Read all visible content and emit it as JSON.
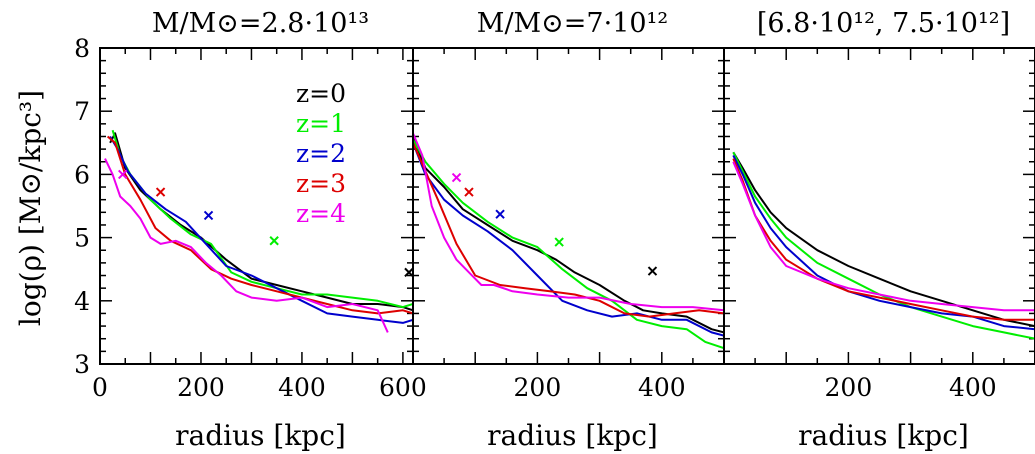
{
  "figure": {
    "ylabel": "log(ρ) [M⊙/kpc³]",
    "xlabel": "radius [kpc]"
  },
  "colors": {
    "z0": "#000000",
    "z1": "#00ee00",
    "z2": "#0000cc",
    "z3": "#dd0000",
    "z4": "#ee00ee"
  },
  "chart_data": [
    {
      "type": "line",
      "title": "M/M⊙=2.8·10¹³",
      "xlabel": "radius [kpc]",
      "ylabel": "log(ρ) [M⊙/kpc³]",
      "xlim": [
        0,
        620
      ],
      "ylim": [
        3,
        8
      ],
      "xticks": [
        0,
        200,
        400,
        600
      ],
      "yticks": [
        3,
        4,
        5,
        6,
        7,
        8
      ],
      "legend": {
        "placement": "top-center",
        "entries": [
          "z=0",
          "z=1",
          "z=2",
          "z=3",
          "z=4"
        ]
      },
      "series": [
        {
          "name": "z=0",
          "color": "#000000",
          "points": [
            [
              20,
              6.5
            ],
            [
              30,
              6.65
            ],
            [
              50,
              6.1
            ],
            [
              80,
              5.75
            ],
            [
              120,
              5.45
            ],
            [
              160,
              5.2
            ],
            [
              200,
              5.0
            ],
            [
              250,
              4.65
            ],
            [
              300,
              4.35
            ],
            [
              350,
              4.25
            ],
            [
              400,
              4.15
            ],
            [
              450,
              4.05
            ],
            [
              500,
              3.95
            ],
            [
              550,
              3.95
            ],
            [
              600,
              3.9
            ],
            [
              620,
              3.85
            ]
          ],
          "marker": [
            612,
            4.45
          ]
        },
        {
          "name": "z=1",
          "color": "#00ee00",
          "points": [
            [
              25,
              6.7
            ],
            [
              40,
              6.3
            ],
            [
              60,
              6.0
            ],
            [
              100,
              5.6
            ],
            [
              140,
              5.3
            ],
            [
              180,
              5.05
            ],
            [
              220,
              4.9
            ],
            [
              260,
              4.45
            ],
            [
              300,
              4.3
            ],
            [
              350,
              4.2
            ],
            [
              400,
              4.1
            ],
            [
              450,
              4.1
            ],
            [
              500,
              4.05
            ],
            [
              550,
              4.0
            ],
            [
              600,
              3.9
            ],
            [
              620,
              3.95
            ]
          ],
          "marker": [
            345,
            4.95
          ]
        },
        {
          "name": "z=2",
          "color": "#0000cc",
          "points": [
            [
              20,
              6.6
            ],
            [
              35,
              6.4
            ],
            [
              55,
              6.05
            ],
            [
              90,
              5.7
            ],
            [
              130,
              5.45
            ],
            [
              170,
              5.25
            ],
            [
              210,
              4.9
            ],
            [
              250,
              4.55
            ],
            [
              300,
              4.4
            ],
            [
              350,
              4.2
            ],
            [
              400,
              4.0
            ],
            [
              450,
              3.8
            ],
            [
              500,
              3.75
            ],
            [
              550,
              3.7
            ],
            [
              600,
              3.65
            ],
            [
              620,
              3.7
            ]
          ],
          "marker": [
            215,
            5.35
          ]
        },
        {
          "name": "z=3",
          "color": "#dd0000",
          "points": [
            [
              15,
              6.6
            ],
            [
              30,
              6.5
            ],
            [
              50,
              6.0
            ],
            [
              80,
              5.6
            ],
            [
              110,
              5.15
            ],
            [
              140,
              4.95
            ],
            [
              180,
              4.8
            ],
            [
              220,
              4.5
            ],
            [
              260,
              4.35
            ],
            [
              300,
              4.25
            ],
            [
              350,
              4.15
            ],
            [
              400,
              4.05
            ],
            [
              450,
              3.95
            ],
            [
              500,
              3.85
            ],
            [
              550,
              3.8
            ],
            [
              600,
              3.85
            ],
            [
              620,
              3.8
            ]
          ],
          "marker": [
            120,
            5.72
          ]
        },
        {
          "name": "z=4",
          "color": "#ee00ee",
          "points": [
            [
              10,
              6.25
            ],
            [
              25,
              6.0
            ],
            [
              40,
              5.65
            ],
            [
              60,
              5.5
            ],
            [
              80,
              5.3
            ],
            [
              100,
              5.0
            ],
            [
              120,
              4.9
            ],
            [
              150,
              4.95
            ],
            [
              180,
              4.85
            ],
            [
              210,
              4.6
            ],
            [
              240,
              4.4
            ],
            [
              270,
              4.15
            ],
            [
              300,
              4.05
            ],
            [
              350,
              4.0
            ],
            [
              400,
              4.05
            ],
            [
              450,
              3.9
            ],
            [
              500,
              3.95
            ],
            [
              550,
              3.85
            ],
            [
              570,
              3.5
            ]
          ],
          "marker": [
            45,
            6.0
          ]
        }
      ]
    },
    {
      "type": "line",
      "title": "M/M⊙=7·10¹²",
      "xlabel": "radius [kpc]",
      "xlim": [
        0,
        500
      ],
      "ylim": [
        3,
        8
      ],
      "xticks": [
        200,
        400
      ],
      "series": [
        {
          "name": "z=0",
          "color": "#000000",
          "points": [
            [
              0,
              6.6
            ],
            [
              20,
              6.1
            ],
            [
              50,
              5.8
            ],
            [
              80,
              5.45
            ],
            [
              120,
              5.2
            ],
            [
              160,
              4.95
            ],
            [
              200,
              4.8
            ],
            [
              230,
              4.65
            ],
            [
              260,
              4.45
            ],
            [
              300,
              4.25
            ],
            [
              340,
              4.0
            ],
            [
              370,
              3.85
            ],
            [
              400,
              3.8
            ],
            [
              440,
              3.75
            ],
            [
              480,
              3.55
            ],
            [
              500,
              3.5
            ]
          ],
          "marker": [
            385,
            4.47
          ]
        },
        {
          "name": "z=1",
          "color": "#00ee00",
          "points": [
            [
              0,
              6.55
            ],
            [
              20,
              6.2
            ],
            [
              50,
              5.85
            ],
            [
              80,
              5.55
            ],
            [
              120,
              5.25
            ],
            [
              160,
              5.0
            ],
            [
              200,
              4.85
            ],
            [
              240,
              4.5
            ],
            [
              280,
              4.2
            ],
            [
              320,
              4.0
            ],
            [
              360,
              3.7
            ],
            [
              400,
              3.6
            ],
            [
              440,
              3.55
            ],
            [
              470,
              3.35
            ],
            [
              500,
              3.25
            ]
          ],
          "marker": [
            235,
            4.93
          ]
        },
        {
          "name": "z=2",
          "color": "#0000cc",
          "points": [
            [
              0,
              6.5
            ],
            [
              20,
              6.0
            ],
            [
              50,
              5.6
            ],
            [
              80,
              5.35
            ],
            [
              120,
              5.1
            ],
            [
              160,
              4.8
            ],
            [
              200,
              4.4
            ],
            [
              240,
              4.0
            ],
            [
              280,
              3.85
            ],
            [
              320,
              3.75
            ],
            [
              360,
              3.8
            ],
            [
              400,
              3.7
            ],
            [
              440,
              3.7
            ],
            [
              480,
              3.5
            ],
            [
              500,
              3.45
            ]
          ],
          "marker": [
            140,
            5.37
          ]
        },
        {
          "name": "z=3",
          "color": "#dd0000",
          "points": [
            [
              0,
              6.5
            ],
            [
              20,
              6.05
            ],
            [
              40,
              5.6
            ],
            [
              70,
              4.9
            ],
            [
              100,
              4.4
            ],
            [
              140,
              4.25
            ],
            [
              180,
              4.2
            ],
            [
              220,
              4.15
            ],
            [
              260,
              4.1
            ],
            [
              300,
              4.0
            ],
            [
              340,
              3.8
            ],
            [
              380,
              3.75
            ],
            [
              420,
              3.8
            ],
            [
              460,
              3.85
            ],
            [
              500,
              3.8
            ]
          ],
          "marker": [
            90,
            5.72
          ]
        },
        {
          "name": "z=4",
          "color": "#ee00ee",
          "points": [
            [
              0,
              6.65
            ],
            [
              15,
              6.3
            ],
            [
              30,
              5.5
            ],
            [
              50,
              5.0
            ],
            [
              70,
              4.65
            ],
            [
              90,
              4.45
            ],
            [
              110,
              4.25
            ],
            [
              130,
              4.25
            ],
            [
              160,
              4.15
            ],
            [
              200,
              4.1
            ],
            [
              250,
              4.05
            ],
            [
              300,
              4.05
            ],
            [
              350,
              3.95
            ],
            [
              400,
              3.9
            ],
            [
              450,
              3.9
            ],
            [
              500,
              3.85
            ]
          ],
          "marker": [
            70,
            5.95
          ]
        }
      ]
    },
    {
      "type": "line",
      "title": "[6.8·10¹², 7.5·10¹²]",
      "xlabel": "radius [kpc]",
      "xlim": [
        0,
        500
      ],
      "ylim": [
        3,
        8
      ],
      "xticks": [
        200,
        400
      ],
      "series": [
        {
          "name": "z=0",
          "color": "#000000",
          "points": [
            [
              15,
              6.35
            ],
            [
              30,
              6.1
            ],
            [
              50,
              5.75
            ],
            [
              75,
              5.4
            ],
            [
              100,
              5.15
            ],
            [
              150,
              4.8
            ],
            [
              200,
              4.55
            ],
            [
              250,
              4.35
            ],
            [
              300,
              4.15
            ],
            [
              350,
              4.0
            ],
            [
              400,
              3.85
            ],
            [
              450,
              3.7
            ],
            [
              500,
              3.6
            ]
          ]
        },
        {
          "name": "z=1",
          "color": "#00ee00",
          "points": [
            [
              15,
              6.35
            ],
            [
              30,
              6.05
            ],
            [
              50,
              5.65
            ],
            [
              75,
              5.3
            ],
            [
              100,
              5.0
            ],
            [
              150,
              4.6
            ],
            [
              200,
              4.35
            ],
            [
              250,
              4.1
            ],
            [
              300,
              3.9
            ],
            [
              350,
              3.75
            ],
            [
              400,
              3.6
            ],
            [
              450,
              3.5
            ],
            [
              500,
              3.4
            ]
          ]
        },
        {
          "name": "z=2",
          "color": "#0000cc",
          "points": [
            [
              15,
              6.3
            ],
            [
              30,
              6.0
            ],
            [
              50,
              5.55
            ],
            [
              75,
              5.15
            ],
            [
              100,
              4.85
            ],
            [
              150,
              4.4
            ],
            [
              200,
              4.15
            ],
            [
              250,
              4.0
            ],
            [
              300,
              3.9
            ],
            [
              350,
              3.8
            ],
            [
              400,
              3.75
            ],
            [
              450,
              3.6
            ],
            [
              500,
              3.55
            ]
          ]
        },
        {
          "name": "z=3",
          "color": "#dd0000",
          "points": [
            [
              15,
              6.25
            ],
            [
              30,
              5.9
            ],
            [
              50,
              5.35
            ],
            [
              75,
              4.95
            ],
            [
              100,
              4.65
            ],
            [
              150,
              4.35
            ],
            [
              200,
              4.15
            ],
            [
              250,
              4.05
            ],
            [
              300,
              3.95
            ],
            [
              350,
              3.85
            ],
            [
              400,
              3.75
            ],
            [
              450,
              3.7
            ],
            [
              500,
              3.7
            ]
          ]
        },
        {
          "name": "z=4",
          "color": "#ee00ee",
          "points": [
            [
              15,
              6.2
            ],
            [
              30,
              5.85
            ],
            [
              50,
              5.35
            ],
            [
              75,
              4.85
            ],
            [
              100,
              4.55
            ],
            [
              150,
              4.35
            ],
            [
              200,
              4.2
            ],
            [
              250,
              4.1
            ],
            [
              300,
              4.0
            ],
            [
              350,
              3.95
            ],
            [
              400,
              3.9
            ],
            [
              450,
              3.85
            ],
            [
              500,
              3.85
            ]
          ]
        }
      ]
    }
  ]
}
